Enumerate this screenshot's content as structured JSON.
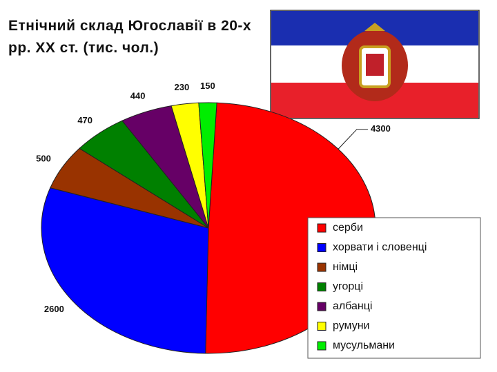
{
  "chart_data": {
    "type": "pie",
    "title": "Етнічний склад Югославії в 20-х рр. ХХ ст. (тис. чол.)",
    "categories": [
      "серби",
      "хорвати і словенці",
      "німці",
      "угорці",
      "албанці",
      "румуни",
      "мусульмани"
    ],
    "values": [
      4300,
      2600,
      500,
      470,
      440,
      230,
      150
    ],
    "colors": [
      "#ff0000",
      "#0000ff",
      "#993300",
      "#008000",
      "#660066",
      "#ffff00",
      "#00ee00"
    ],
    "legend": "bottom-right"
  }
}
